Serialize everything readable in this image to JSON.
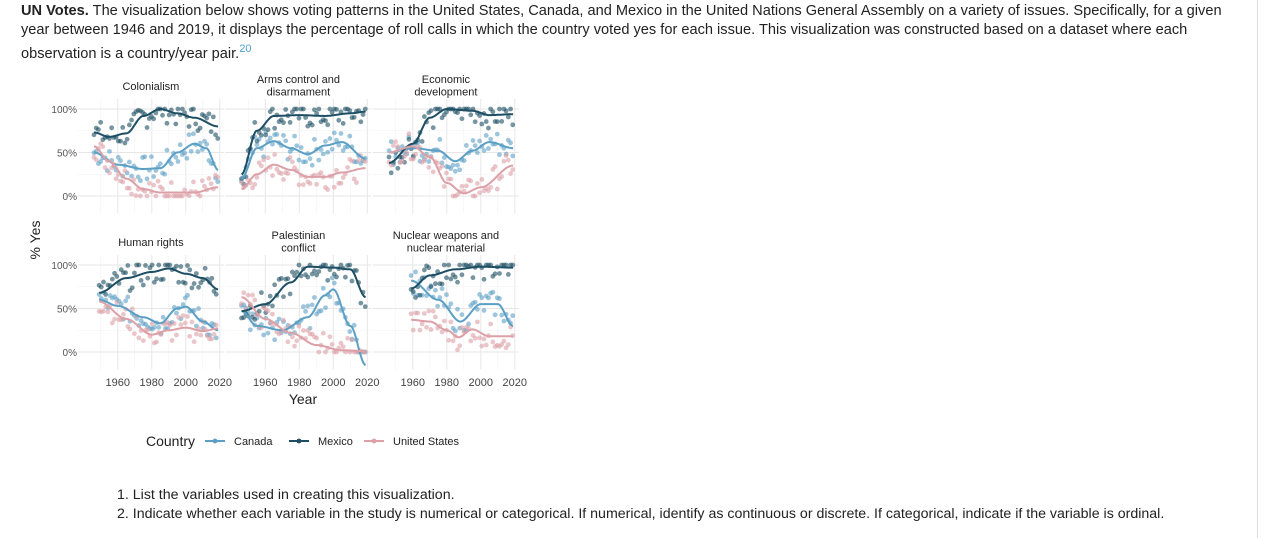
{
  "intro": {
    "lead": "UN Votes.",
    "text": " The visualization below shows voting patterns in the United States, Canada, and Mexico in the United Nations General Assembly on a variety of issues. Specifically, for a given year between 1946 and 2019, it displays the percentage of roll calls in which the country voted yes for each issue. This visualization was constructed based on a dataset where each observation is a country/year pair.",
    "footnote": "20"
  },
  "questions": [
    "1. List the variables used in creating this visualization.",
    "2. Indicate whether each variable in the study is numerical or categorical. If numerical, identify as continuous or discrete. If categorical, indicate if the variable is ordinal."
  ],
  "chart_data": {
    "type": "scatter",
    "smooth_lines": true,
    "xlabel": "Year",
    "ylabel": "% Yes",
    "xticks": [
      "1960",
      "1980",
      "2000",
      "2020"
    ],
    "yticks": [
      "0%",
      "50%",
      "100%"
    ],
    "xlim": [
      1946,
      2020
    ],
    "ylim": [
      -20,
      110
    ],
    "grid": true,
    "legend": {
      "title": "Country",
      "placement": "bottom",
      "entries": [
        "Canada",
        "Mexico",
        "United States"
      ]
    },
    "colors": {
      "Canada": "#5b9fc5",
      "Mexico": "#1d4e63",
      "United States": "#dca0a6"
    },
    "facets": [
      {
        "title": [
          "Colonialism"
        ],
        "series": {
          "Canada": [
            [
              1946,
              50
            ],
            [
              1960,
              36
            ],
            [
              1975,
              31
            ],
            [
              1985,
              32
            ],
            [
              1995,
              50
            ],
            [
              2005,
              60
            ],
            [
              2012,
              55
            ],
            [
              2019,
              30
            ]
          ],
          "Mexico": [
            [
              1946,
              73
            ],
            [
              1955,
              68
            ],
            [
              1965,
              72
            ],
            [
              1975,
              92
            ],
            [
              1985,
              100
            ],
            [
              1995,
              95
            ],
            [
              2005,
              90
            ],
            [
              2019,
              80
            ]
          ],
          "United States": [
            [
              1946,
              57
            ],
            [
              1955,
              40
            ],
            [
              1965,
              20
            ],
            [
              1975,
              8
            ],
            [
              1985,
              4
            ],
            [
              1995,
              4
            ],
            [
              2005,
              4
            ],
            [
              2019,
              10
            ]
          ]
        }
      },
      {
        "title": [
          "Arms control and",
          "disarmament"
        ],
        "series": {
          "Canada": [
            [
              1946,
              20
            ],
            [
              1955,
              55
            ],
            [
              1965,
              63
            ],
            [
              1975,
              55
            ],
            [
              1985,
              48
            ],
            [
              1995,
              58
            ],
            [
              2005,
              62
            ],
            [
              2019,
              43
            ]
          ],
          "Mexico": [
            [
              1946,
              25
            ],
            [
              1955,
              75
            ],
            [
              1965,
              92
            ],
            [
              1980,
              93
            ],
            [
              1995,
              92
            ],
            [
              2010,
              95
            ],
            [
              2019,
              97
            ]
          ],
          "United States": [
            [
              1946,
              8
            ],
            [
              1955,
              25
            ],
            [
              1965,
              36
            ],
            [
              1975,
              30
            ],
            [
              1985,
              22
            ],
            [
              1995,
              22
            ],
            [
              2005,
              27
            ],
            [
              2019,
              32
            ]
          ]
        }
      },
      {
        "title": [
          "Economic",
          "development"
        ],
        "series": {
          "Canada": [
            [
              1946,
              50
            ],
            [
              1960,
              55
            ],
            [
              1975,
              52
            ],
            [
              1985,
              40
            ],
            [
              1995,
              52
            ],
            [
              2005,
              62
            ],
            [
              2019,
              55
            ]
          ],
          "Mexico": [
            [
              1946,
              38
            ],
            [
              1960,
              60
            ],
            [
              1970,
              90
            ],
            [
              1980,
              100
            ],
            [
              1995,
              98
            ],
            [
              2005,
              93
            ],
            [
              2019,
              94
            ]
          ],
          "United States": [
            [
              1946,
              50
            ],
            [
              1960,
              57
            ],
            [
              1970,
              45
            ],
            [
              1980,
              15
            ],
            [
              1990,
              3
            ],
            [
              2000,
              10
            ],
            [
              2019,
              35
            ]
          ]
        }
      },
      {
        "title": [
          "Human rights"
        ],
        "series": {
          "Canada": [
            [
              1949,
              60
            ],
            [
              1960,
              53
            ],
            [
              1975,
              40
            ],
            [
              1985,
              33
            ],
            [
              1995,
              50
            ],
            [
              2000,
              52
            ],
            [
              2010,
              35
            ],
            [
              2019,
              25
            ]
          ],
          "Mexico": [
            [
              1949,
              68
            ],
            [
              1965,
              85
            ],
            [
              1980,
              92
            ],
            [
              1990,
              96
            ],
            [
              2000,
              90
            ],
            [
              2010,
              85
            ],
            [
              2019,
              72
            ]
          ],
          "United States": [
            [
              1949,
              58
            ],
            [
              1965,
              38
            ],
            [
              1980,
              20
            ],
            [
              1990,
              25
            ],
            [
              2000,
              28
            ],
            [
              2010,
              24
            ],
            [
              2019,
              27
            ]
          ]
        }
      },
      {
        "title": [
          "Palestinian",
          "conflict"
        ],
        "series": {
          "Canada": [
            [
              1946,
              47
            ],
            [
              1955,
              30
            ],
            [
              1970,
              25
            ],
            [
              1985,
              40
            ],
            [
              1995,
              65
            ],
            [
              2000,
              72
            ],
            [
              2010,
              30
            ],
            [
              2019,
              -15
            ]
          ],
          "Mexico": [
            [
              1946,
              47
            ],
            [
              1960,
              55
            ],
            [
              1975,
              80
            ],
            [
              1985,
              98
            ],
            [
              2000,
              97
            ],
            [
              2010,
              95
            ],
            [
              2019,
              63
            ]
          ],
          "United States": [
            [
              1946,
              63
            ],
            [
              1960,
              38
            ],
            [
              1975,
              22
            ],
            [
              1990,
              8
            ],
            [
              2005,
              2
            ],
            [
              2019,
              1
            ]
          ]
        }
      },
      {
        "title": [
          "Nuclear weapons and",
          "nuclear material"
        ],
        "series": {
          "Canada": [
            [
              1959,
              82
            ],
            [
              1975,
              60
            ],
            [
              1988,
              35
            ],
            [
              2000,
              55
            ],
            [
              2010,
              55
            ],
            [
              2019,
              30
            ]
          ],
          "Mexico": [
            [
              1959,
              73
            ],
            [
              1970,
              88
            ],
            [
              1985,
              95
            ],
            [
              2000,
              98
            ],
            [
              2019,
              97
            ]
          ],
          "United States": [
            [
              1959,
              37
            ],
            [
              1970,
              35
            ],
            [
              1980,
              25
            ],
            [
              1987,
              17
            ],
            [
              1995,
              26
            ],
            [
              2005,
              18
            ],
            [
              2019,
              18
            ]
          ]
        }
      }
    ]
  }
}
